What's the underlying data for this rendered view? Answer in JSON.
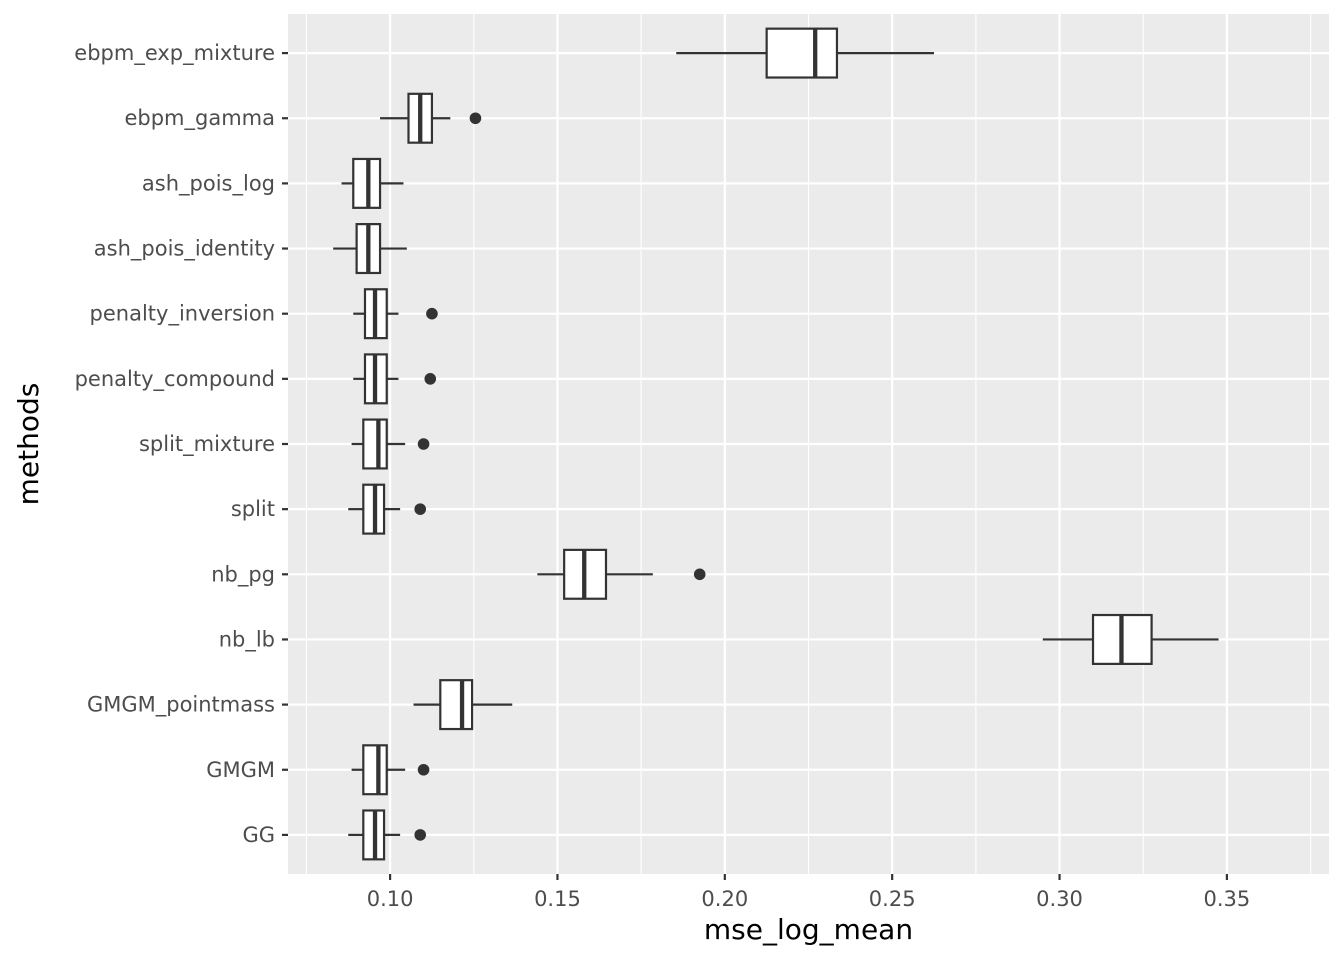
{
  "chart_data": {
    "type": "boxplot",
    "orientation": "horizontal",
    "xlabel": "mse_log_mean",
    "ylabel": "methods",
    "xlim": [
      0.0695,
      0.3805
    ],
    "x_ticks": [
      0.1,
      0.15,
      0.2,
      0.25,
      0.3,
      0.35
    ],
    "x_tick_labels": [
      "0.10",
      "0.15",
      "0.20",
      "0.25",
      "0.30",
      "0.35"
    ],
    "grid": true,
    "legend": "none",
    "colors": {
      "panel_background": "#ebebeb",
      "grid_line": "#ffffff",
      "box_fill": "#ffffff",
      "box_stroke": "#333333",
      "outlier": "#333333",
      "tick_label": "#4d4d4d",
      "axis_title": "#000000"
    },
    "categories": [
      "ebpm_exp_mixture",
      "ebpm_gamma",
      "ash_pois_log",
      "ash_pois_identity",
      "penalty_inversion",
      "penalty_compound",
      "split_mixture",
      "split",
      "nb_pg",
      "nb_lb",
      "GMGM_pointmass",
      "GMGM",
      "GG"
    ],
    "boxes": [
      {
        "category": "ebpm_exp_mixture",
        "whisker_low": 0.1855,
        "q1": 0.2125,
        "median": 0.227,
        "q3": 0.2335,
        "whisker_high": 0.2625,
        "outliers": []
      },
      {
        "category": "ebpm_gamma",
        "whisker_low": 0.097,
        "q1": 0.1055,
        "median": 0.109,
        "q3": 0.1125,
        "whisker_high": 0.118,
        "outliers": [
          0.1255
        ]
      },
      {
        "category": "ash_pois_log",
        "whisker_low": 0.0855,
        "q1": 0.089,
        "median": 0.0935,
        "q3": 0.097,
        "whisker_high": 0.104,
        "outliers": []
      },
      {
        "category": "ash_pois_identity",
        "whisker_low": 0.083,
        "q1": 0.09,
        "median": 0.0935,
        "q3": 0.097,
        "whisker_high": 0.105,
        "outliers": []
      },
      {
        "category": "penalty_inversion",
        "whisker_low": 0.089,
        "q1": 0.0925,
        "median": 0.0955,
        "q3": 0.099,
        "whisker_high": 0.1025,
        "outliers": [
          0.1125
        ]
      },
      {
        "category": "penalty_compound",
        "whisker_low": 0.089,
        "q1": 0.0925,
        "median": 0.0955,
        "q3": 0.099,
        "whisker_high": 0.1025,
        "outliers": [
          0.112
        ]
      },
      {
        "category": "split_mixture",
        "whisker_low": 0.0885,
        "q1": 0.092,
        "median": 0.0965,
        "q3": 0.099,
        "whisker_high": 0.1045,
        "outliers": [
          0.11
        ]
      },
      {
        "category": "split",
        "whisker_low": 0.0875,
        "q1": 0.092,
        "median": 0.0955,
        "q3": 0.0982,
        "whisker_high": 0.103,
        "outliers": [
          0.109
        ]
      },
      {
        "category": "nb_pg",
        "whisker_low": 0.144,
        "q1": 0.152,
        "median": 0.158,
        "q3": 0.1645,
        "whisker_high": 0.1785,
        "outliers": [
          0.1925
        ]
      },
      {
        "category": "nb_lb",
        "whisker_low": 0.295,
        "q1": 0.31,
        "median": 0.3185,
        "q3": 0.3275,
        "whisker_high": 0.3475,
        "outliers": []
      },
      {
        "category": "GMGM_pointmass",
        "whisker_low": 0.107,
        "q1": 0.115,
        "median": 0.1215,
        "q3": 0.1245,
        "whisker_high": 0.1365,
        "outliers": []
      },
      {
        "category": "GMGM",
        "whisker_low": 0.0885,
        "q1": 0.092,
        "median": 0.0965,
        "q3": 0.099,
        "whisker_high": 0.1045,
        "outliers": [
          0.11
        ]
      },
      {
        "category": "GG",
        "whisker_low": 0.0875,
        "q1": 0.092,
        "median": 0.0955,
        "q3": 0.0982,
        "whisker_high": 0.103,
        "outliers": [
          0.109
        ]
      }
    ]
  }
}
